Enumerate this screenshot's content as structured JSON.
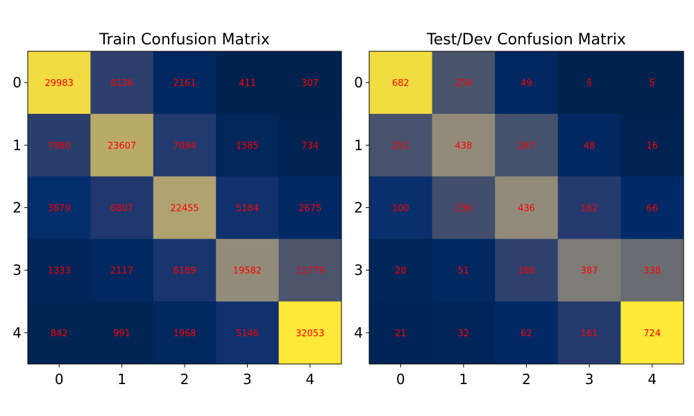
{
  "chart_data": [
    {
      "type": "heatmap",
      "title": "Train Confusion Matrix",
      "x_ticks": [
        "0",
        "1",
        "2",
        "3",
        "4"
      ],
      "y_ticks": [
        "0",
        "1",
        "2",
        "3",
        "4"
      ],
      "colormap": "cividis",
      "annotation_color": "#ff0000",
      "values": [
        [
          29983,
          8136,
          2161,
          411,
          307
        ],
        [
          7980,
          23607,
          7094,
          1585,
          734
        ],
        [
          3879,
          6807,
          22455,
          5184,
          2675
        ],
        [
          1333,
          2117,
          6189,
          19582,
          11779
        ],
        [
          842,
          991,
          1968,
          5146,
          32053
        ]
      ]
    },
    {
      "type": "heatmap",
      "title": "Test/Dev Confusion Matrix",
      "x_ticks": [
        "0",
        "1",
        "2",
        "3",
        "4"
      ],
      "y_ticks": [
        "0",
        "1",
        "2",
        "3",
        "4"
      ],
      "colormap": "cividis",
      "annotation_color": "#ff0000",
      "values": [
        [
          682,
          259,
          49,
          5,
          5
        ],
        [
          251,
          438,
          247,
          48,
          16
        ],
        [
          100,
          236,
          436,
          162,
          66
        ],
        [
          28,
          51,
          186,
          387,
          338
        ],
        [
          21,
          32,
          62,
          161,
          724
        ]
      ]
    }
  ]
}
